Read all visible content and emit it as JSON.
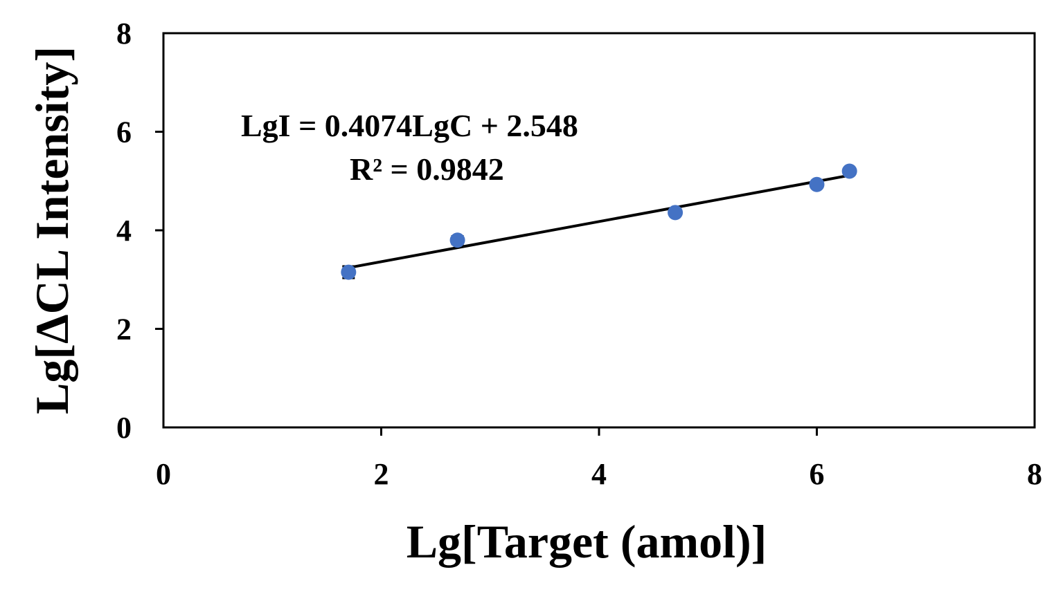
{
  "chart_data": {
    "type": "scatter",
    "xlabel": "Lg[Target (amol)]",
    "ylabel": "Lg[ΔCL Intensity]",
    "xlim": [
      0,
      8
    ],
    "ylim": [
      0,
      8
    ],
    "xticks": [
      "0",
      "2",
      "4",
      "6",
      "8"
    ],
    "yticks": [
      "0",
      "2",
      "4",
      "6",
      "8"
    ],
    "grid": false,
    "series": [
      {
        "points": [
          {
            "x": 1.7,
            "y": 3.15,
            "err": 0.12
          },
          {
            "x": 2.7,
            "y": 3.8,
            "err": 0.08
          },
          {
            "x": 4.7,
            "y": 4.36,
            "err": 0.05
          },
          {
            "x": 6.0,
            "y": 4.93,
            "err": 0.05
          },
          {
            "x": 6.3,
            "y": 5.2,
            "err": 0.05
          }
        ]
      }
    ],
    "trendline": {
      "slope": 0.4074,
      "intercept": 2.548,
      "x_range": [
        1.7,
        6.3
      ]
    },
    "annotations": {
      "equation": "LgI = 0.4074LgC + 2.548",
      "r_squared": "R² = 0.9842"
    },
    "colors": {
      "points": "#4472c4",
      "trendline": "#000000",
      "axes": "#000000"
    }
  }
}
